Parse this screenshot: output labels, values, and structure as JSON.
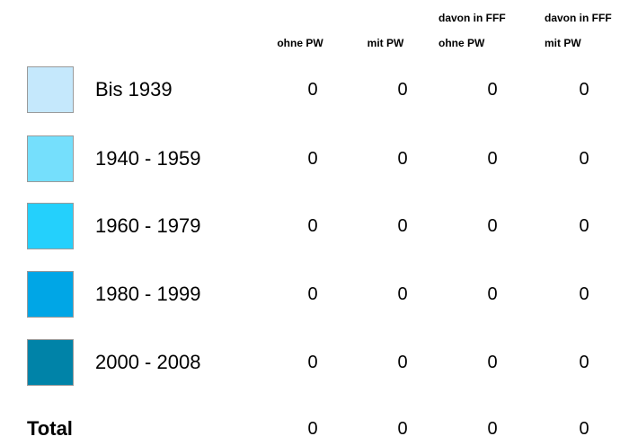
{
  "table": {
    "columns": [
      {
        "label": "ohne PW"
      },
      {
        "label": "mit PW"
      },
      {
        "group": "davon in FFF",
        "label": "ohne PW"
      },
      {
        "group": "davon in FFF",
        "label": "mit PW"
      }
    ],
    "rows": [
      {
        "label": "Bis 1939",
        "color": "#c5e8fc",
        "values": [
          0,
          0,
          0,
          0
        ]
      },
      {
        "label": "1940 - 1959",
        "color": "#75dffc",
        "values": [
          0,
          0,
          0,
          0
        ]
      },
      {
        "label": "1960 - 1979",
        "color": "#24d0fc",
        "values": [
          0,
          0,
          0,
          0
        ]
      },
      {
        "label": "1980 - 1999",
        "color": "#00a6e6",
        "values": [
          0,
          0,
          0,
          0
        ]
      },
      {
        "label": "2000 - 2008",
        "color": "#0083a8",
        "values": [
          0,
          0,
          0,
          0
        ]
      }
    ],
    "total": {
      "label": "Total",
      "values": [
        0,
        0,
        0,
        0
      ]
    }
  }
}
